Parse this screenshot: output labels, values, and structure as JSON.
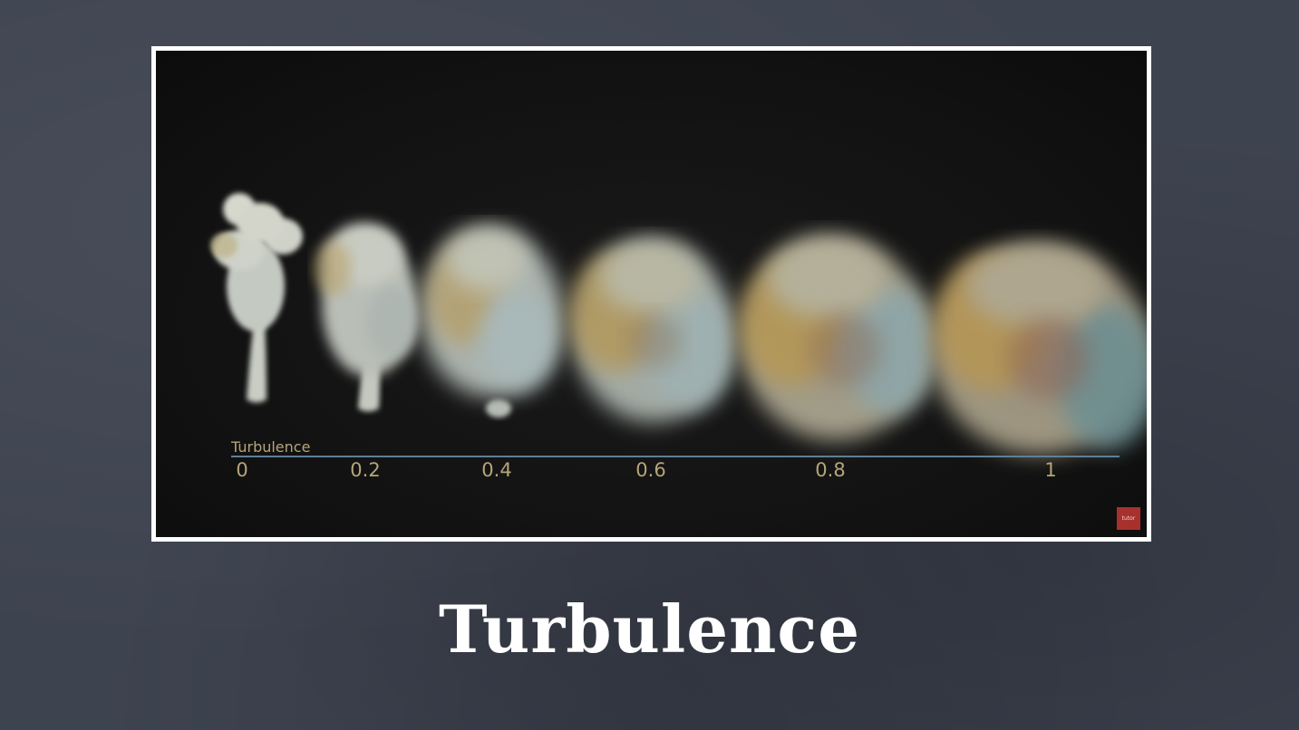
{
  "slide": {
    "title": "Turbulence"
  },
  "video": {
    "axis_title": "Turbulence",
    "ticks": [
      "0",
      "0.2",
      "0.4",
      "0.6",
      "0.8",
      "1"
    ],
    "badge_label": "tutor"
  },
  "colors": {
    "board": "#3e4350",
    "video_bg": "#111111",
    "label": "#b6a578",
    "axis_line": "#5f7f96",
    "badge": "#a8302d",
    "smoke_gray": "#b9c2bf",
    "smoke_gold": "#b79a5e"
  }
}
